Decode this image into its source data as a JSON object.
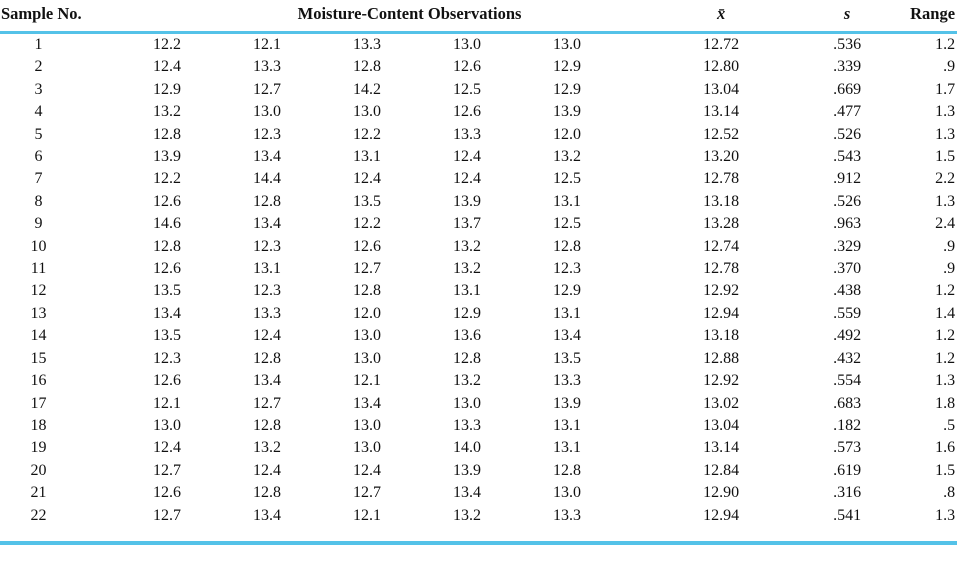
{
  "colors": {
    "rule_blue": "#54c2e8",
    "text": "#111111",
    "background": "#ffffff"
  },
  "table": {
    "headers": {
      "sample_no": "Sample No.",
      "observations": "Moisture-Content Observations",
      "mean": "x̄",
      "std_dev": "s",
      "range": "Range"
    },
    "rows": [
      {
        "sample": "1",
        "obs": [
          "12.2",
          "12.1",
          "13.3",
          "13.0",
          "13.0"
        ],
        "mean": "12.72",
        "s": ".536",
        "range": "1.2"
      },
      {
        "sample": "2",
        "obs": [
          "12.4",
          "13.3",
          "12.8",
          "12.6",
          "12.9"
        ],
        "mean": "12.80",
        "s": ".339",
        "range": ".9"
      },
      {
        "sample": "3",
        "obs": [
          "12.9",
          "12.7",
          "14.2",
          "12.5",
          "12.9"
        ],
        "mean": "13.04",
        "s": ".669",
        "range": "1.7"
      },
      {
        "sample": "4",
        "obs": [
          "13.2",
          "13.0",
          "13.0",
          "12.6",
          "13.9"
        ],
        "mean": "13.14",
        "s": ".477",
        "range": "1.3"
      },
      {
        "sample": "5",
        "obs": [
          "12.8",
          "12.3",
          "12.2",
          "13.3",
          "12.0"
        ],
        "mean": "12.52",
        "s": ".526",
        "range": "1.3"
      },
      {
        "sample": "6",
        "obs": [
          "13.9",
          "13.4",
          "13.1",
          "12.4",
          "13.2"
        ],
        "mean": "13.20",
        "s": ".543",
        "range": "1.5"
      },
      {
        "sample": "7",
        "obs": [
          "12.2",
          "14.4",
          "12.4",
          "12.4",
          "12.5"
        ],
        "mean": "12.78",
        "s": ".912",
        "range": "2.2"
      },
      {
        "sample": "8",
        "obs": [
          "12.6",
          "12.8",
          "13.5",
          "13.9",
          "13.1"
        ],
        "mean": "13.18",
        "s": ".526",
        "range": "1.3"
      },
      {
        "sample": "9",
        "obs": [
          "14.6",
          "13.4",
          "12.2",
          "13.7",
          "12.5"
        ],
        "mean": "13.28",
        "s": ".963",
        "range": "2.4"
      },
      {
        "sample": "10",
        "obs": [
          "12.8",
          "12.3",
          "12.6",
          "13.2",
          "12.8"
        ],
        "mean": "12.74",
        "s": ".329",
        "range": ".9"
      },
      {
        "sample": "11",
        "obs": [
          "12.6",
          "13.1",
          "12.7",
          "13.2",
          "12.3"
        ],
        "mean": "12.78",
        "s": ".370",
        "range": ".9"
      },
      {
        "sample": "12",
        "obs": [
          "13.5",
          "12.3",
          "12.8",
          "13.1",
          "12.9"
        ],
        "mean": "12.92",
        "s": ".438",
        "range": "1.2"
      },
      {
        "sample": "13",
        "obs": [
          "13.4",
          "13.3",
          "12.0",
          "12.9",
          "13.1"
        ],
        "mean": "12.94",
        "s": ".559",
        "range": "1.4"
      },
      {
        "sample": "14",
        "obs": [
          "13.5",
          "12.4",
          "13.0",
          "13.6",
          "13.4"
        ],
        "mean": "13.18",
        "s": ".492",
        "range": "1.2"
      },
      {
        "sample": "15",
        "obs": [
          "12.3",
          "12.8",
          "13.0",
          "12.8",
          "13.5"
        ],
        "mean": "12.88",
        "s": ".432",
        "range": "1.2"
      },
      {
        "sample": "16",
        "obs": [
          "12.6",
          "13.4",
          "12.1",
          "13.2",
          "13.3"
        ],
        "mean": "12.92",
        "s": ".554",
        "range": "1.3"
      },
      {
        "sample": "17",
        "obs": [
          "12.1",
          "12.7",
          "13.4",
          "13.0",
          "13.9"
        ],
        "mean": "13.02",
        "s": ".683",
        "range": "1.8"
      },
      {
        "sample": "18",
        "obs": [
          "13.0",
          "12.8",
          "13.0",
          "13.3",
          "13.1"
        ],
        "mean": "13.04",
        "s": ".182",
        "range": ".5"
      },
      {
        "sample": "19",
        "obs": [
          "12.4",
          "13.2",
          "13.0",
          "14.0",
          "13.1"
        ],
        "mean": "13.14",
        "s": ".573",
        "range": "1.6"
      },
      {
        "sample": "20",
        "obs": [
          "12.7",
          "12.4",
          "12.4",
          "13.9",
          "12.8"
        ],
        "mean": "12.84",
        "s": ".619",
        "range": "1.5"
      },
      {
        "sample": "21",
        "obs": [
          "12.6",
          "12.8",
          "12.7",
          "13.4",
          "13.0"
        ],
        "mean": "12.90",
        "s": ".316",
        "range": ".8"
      },
      {
        "sample": "22",
        "obs": [
          "12.7",
          "13.4",
          "12.1",
          "13.2",
          "13.3"
        ],
        "mean": "12.94",
        "s": ".541",
        "range": "1.3"
      }
    ]
  }
}
